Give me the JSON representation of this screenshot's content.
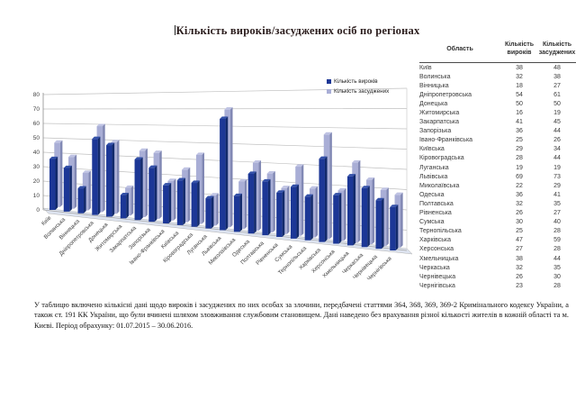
{
  "title": "Кількість вироків/засуджених осіб по регіонах",
  "chart_data": {
    "type": "bar",
    "style": "3d-column",
    "categories": [
      "Київ",
      "Волинська",
      "Вінницька",
      "Дніпропетровська",
      "Донецька",
      "Житомирська",
      "Закарпатська",
      "Запорізька",
      "Івано-Франківська",
      "Київська",
      "Кіровоградська",
      "Луганська",
      "Львівська",
      "Миколаївська",
      "Одеська",
      "Полтавська",
      "Рівненська",
      "Сумська",
      "Тернопільська",
      "Харківська",
      "Херсонська",
      "Хмельницька",
      "Черкаська",
      "Чернівецька",
      "Чернігівська"
    ],
    "series": [
      {
        "name": "Кількість вироків",
        "color": "#1c3796",
        "side": "#122a6b",
        "top": "#3350a8",
        "values": [
          38,
          32,
          18,
          54,
          50,
          16,
          41,
          36,
          25,
          29,
          28,
          19,
          69,
          22,
          36,
          32,
          26,
          30,
          25,
          47,
          27,
          38,
          32,
          26,
          23
        ]
      },
      {
        "name": "Кількість засуджених",
        "color": "#a9aed6",
        "side": "#8188b4",
        "top": "#bfc3e3",
        "values": [
          48,
          38,
          27,
          61,
          50,
          19,
          45,
          44,
          26,
          34,
          44,
          19,
          73,
          29,
          41,
          35,
          27,
          40,
          28,
          59,
          28,
          44,
          35,
          30,
          28
        ]
      }
    ],
    "ylim": [
      0,
      80
    ],
    "ytick_step": 10,
    "grid": true,
    "legend_position": "top-right",
    "grid_color": "#c0c0c0",
    "axis_color": "#8c8c8c",
    "floor_color": "#dde3ef",
    "tick_label_color": "#404040"
  },
  "table": {
    "headers": [
      "Область",
      "Кількість вироків",
      "Кількість засуджених"
    ],
    "rows": [
      [
        "Київ",
        38,
        48
      ],
      [
        "Волинська",
        32,
        38
      ],
      [
        "Вінницька",
        18,
        27
      ],
      [
        "Дніпропетровська",
        54,
        61
      ],
      [
        "Донецька",
        50,
        50
      ],
      [
        "Житомирська",
        16,
        19
      ],
      [
        "Закарпатська",
        41,
        45
      ],
      [
        "Запорізька",
        36,
        44
      ],
      [
        "Івано-Франківська",
        25,
        26
      ],
      [
        "Київська",
        29,
        34
      ],
      [
        "Кіровоградська",
        28,
        44
      ],
      [
        "Луганська",
        19,
        19
      ],
      [
        "Львівська",
        69,
        73
      ],
      [
        "Миколаївська",
        22,
        29
      ],
      [
        "Одеська",
        36,
        41
      ],
      [
        "Полтавська",
        32,
        35
      ],
      [
        "Рівненська",
        26,
        27
      ],
      [
        "Сумська",
        30,
        40
      ],
      [
        "Тернопільська",
        25,
        28
      ],
      [
        "Харківська",
        47,
        59
      ],
      [
        "Херсонська",
        27,
        28
      ],
      [
        "Хмельницька",
        38,
        44
      ],
      [
        "Черкаська",
        32,
        35
      ],
      [
        "Чернівецька",
        26,
        30
      ],
      [
        "Чернігівська",
        23,
        28
      ]
    ]
  },
  "footnote": "У таблицю включено кількісні дані щодо вироків і засуджених по них особах за злочини, передбачені статтями 364, 368, 369, 369-2 Кримінального кодексу України, а також ст. 191 КК України, що були вчинені шляхом зловживання службовим становищем. Дані наведено без врахування різної кількості жителів в кожній області та м. Києві. Період обрахунку: 01.07.2015 – 30.06.2016."
}
